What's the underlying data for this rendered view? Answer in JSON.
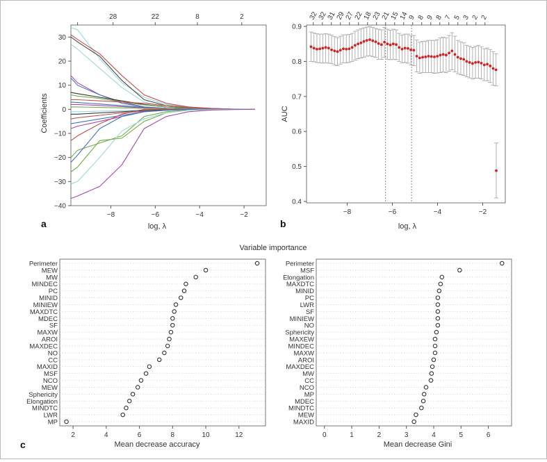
{
  "figure": {
    "panel_labels": [
      "a",
      "b",
      "c"
    ]
  },
  "chart_data": [
    {
      "panel": "a",
      "type": "line",
      "title": "",
      "xlabel": "log, λ",
      "ylabel": "Coefficients",
      "xlim": [
        -9.8,
        -1.0
      ],
      "ylim": [
        -40,
        35
      ],
      "xticks": [
        -8,
        -6,
        -4,
        -2
      ],
      "xtick_labels": [
        "−8",
        "−6",
        "−4",
        "−2"
      ],
      "yticks": [
        -40,
        -30,
        -20,
        -10,
        0,
        10,
        20,
        30
      ],
      "ytick_labels": [
        "−40",
        "−30",
        "−20",
        "−10",
        "0",
        "10",
        "20",
        "30"
      ],
      "top_axis": {
        "ticks": [
          -9.5,
          -7.9,
          -6.0,
          -4.1,
          -2.1
        ],
        "labels": [
          "",
          "28",
          "22",
          "8",
          "2"
        ]
      },
      "x": [
        -9.8,
        -9.5,
        -8.5,
        -7.5,
        -6.5,
        -5.5,
        -4.5,
        -3.5,
        -2.5,
        -1.5
      ],
      "series": [
        {
          "name": "c1",
          "color": "#9fd8d8",
          "values": [
            34,
            33,
            21,
            11,
            5,
            2,
            0.9,
            0.4,
            0.2,
            0
          ]
        },
        {
          "name": "c2",
          "color": "#4a4a4a",
          "values": [
            30,
            28,
            22,
            12,
            4,
            1.5,
            0.7,
            0.3,
            0.1,
            0
          ]
        },
        {
          "name": "c3",
          "color": "#c0504d",
          "values": [
            31,
            29,
            23,
            14,
            6,
            2.5,
            1,
            0.4,
            0.1,
            0
          ]
        },
        {
          "name": "c4",
          "color": "#9fd8d8",
          "values": [
            27,
            25,
            17,
            9,
            3,
            1,
            0.5,
            0.2,
            0.1,
            0
          ]
        },
        {
          "name": "c5",
          "color": "#a64ca6",
          "values": [
            14,
            11,
            6,
            3,
            1,
            0.4,
            0.2,
            0.1,
            0,
            0
          ]
        },
        {
          "name": "c6",
          "color": "#4472c4",
          "values": [
            13,
            10,
            6,
            2.5,
            1,
            0.4,
            0.2,
            0.1,
            0,
            0
          ]
        },
        {
          "name": "c7",
          "color": "#333333",
          "values": [
            7,
            6.5,
            5,
            3.5,
            2,
            1,
            0.5,
            0.2,
            0.1,
            0
          ]
        },
        {
          "name": "c8",
          "color": "#70ad47",
          "values": [
            6,
            5.5,
            4.5,
            3,
            1.8,
            1,
            0.4,
            0.2,
            0.1,
            0
          ]
        },
        {
          "name": "c9",
          "color": "#c0504d",
          "values": [
            4,
            4,
            3.5,
            3,
            2.5,
            1.5,
            0.8,
            0.3,
            0.1,
            0
          ]
        },
        {
          "name": "c10",
          "color": "#4472c4",
          "values": [
            3,
            2.8,
            2.2,
            1.5,
            0.8,
            0.4,
            0.2,
            0.1,
            0,
            0
          ]
        },
        {
          "name": "c11",
          "color": "#a64ca6",
          "values": [
            2,
            2,
            1.6,
            1.1,
            0.6,
            0.3,
            0.1,
            0,
            0,
            0
          ]
        },
        {
          "name": "c12",
          "color": "#70ad47",
          "values": [
            1,
            1,
            0.8,
            0.6,
            0.4,
            0.2,
            0.1,
            0,
            0,
            0
          ]
        },
        {
          "name": "c13",
          "color": "#9fd8d8",
          "values": [
            -1,
            -1,
            -0.8,
            -0.5,
            -0.3,
            -0.1,
            0,
            0,
            0,
            0
          ]
        },
        {
          "name": "c14",
          "color": "#333333",
          "values": [
            -2,
            -2,
            -1.5,
            -1,
            -0.5,
            -0.2,
            -0.1,
            0,
            0,
            0
          ]
        },
        {
          "name": "c15",
          "color": "#c0504d",
          "values": [
            -4,
            -3.5,
            -2.5,
            -1.5,
            -0.8,
            -0.3,
            -0.1,
            0,
            0,
            0
          ]
        },
        {
          "name": "c16",
          "color": "#4472c4",
          "values": [
            -6,
            -5.5,
            -4,
            -2.5,
            -1,
            -0.4,
            -0.1,
            0,
            0,
            0
          ]
        },
        {
          "name": "c17",
          "color": "#a64ca6",
          "values": [
            -8,
            -7,
            -5,
            -3,
            -1,
            -0.4,
            -0.1,
            0,
            0,
            0
          ]
        },
        {
          "name": "c18",
          "color": "#c0504d",
          "values": [
            -13,
            -11,
            -6,
            -2,
            0,
            0,
            0,
            0,
            0,
            0
          ]
        },
        {
          "name": "c19",
          "color": "#70ad47",
          "values": [
            -20,
            -17,
            -14,
            -11,
            -3,
            -1,
            -0.3,
            -0.1,
            0,
            0
          ]
        },
        {
          "name": "c20",
          "color": "#4472c4",
          "values": [
            -22,
            -19,
            -8,
            -3,
            -1,
            -0.3,
            -0.1,
            0,
            0,
            0
          ]
        },
        {
          "name": "c21",
          "color": "#70ad47",
          "values": [
            -26,
            -24,
            -13,
            -12,
            -5,
            -1.5,
            -0.4,
            -0.1,
            0,
            0
          ]
        },
        {
          "name": "c22",
          "color": "#9fd8d8",
          "values": [
            -31,
            -30,
            -20,
            -9,
            -4,
            -1.5,
            -0.4,
            -0.1,
            0,
            0
          ]
        },
        {
          "name": "c23",
          "color": "#a64ca6",
          "values": [
            -37,
            -36,
            -32,
            -23,
            -8,
            -3,
            -1,
            -0.3,
            -0.1,
            0
          ]
        }
      ]
    },
    {
      "panel": "b",
      "type": "scatter",
      "title": "",
      "xlabel": "log, λ",
      "ylabel": "AUC",
      "xlim": [
        -9.8,
        -1.0
      ],
      "ylim": [
        0.4,
        0.9
      ],
      "xticks": [
        -8,
        -6,
        -4,
        -2
      ],
      "xtick_labels": [
        "−8",
        "−6",
        "−4",
        "−2"
      ],
      "yticks": [
        0.4,
        0.5,
        0.6,
        0.7,
        0.8,
        0.9
      ],
      "ytick_labels": [
        "0.4",
        "0.5",
        "0.6",
        "0.7",
        "0.8",
        "0.9"
      ],
      "top_axis": {
        "ticks": [
          -9.5,
          -9.1,
          -8.7,
          -8.3,
          -7.9,
          -7.5,
          -7.1,
          -6.7,
          -6.3,
          -5.9,
          -5.5,
          -5.1,
          -4.7,
          -4.3,
          -3.9,
          -3.5,
          -3.1,
          -2.7,
          -2.3,
          -1.9
        ],
        "labels": [
          "32",
          "32",
          "31",
          "29",
          "27",
          "22",
          "18",
          "23",
          "21",
          "15",
          "14",
          "9",
          "8",
          "9",
          "8",
          "7",
          "5",
          "3",
          "2",
          "2"
        ]
      },
      "vlines": [
        -6.3,
        -5.15
      ],
      "x": [
        -9.6,
        -9.47,
        -9.34,
        -9.21,
        -9.08,
        -8.95,
        -8.82,
        -8.69,
        -8.56,
        -8.43,
        -8.3,
        -8.17,
        -8.04,
        -7.91,
        -7.78,
        -7.65,
        -7.52,
        -7.39,
        -7.26,
        -7.13,
        -7.0,
        -6.87,
        -6.74,
        -6.61,
        -6.48,
        -6.35,
        -6.22,
        -6.09,
        -5.96,
        -5.83,
        -5.7,
        -5.57,
        -5.44,
        -5.31,
        -5.18,
        -5.05,
        -4.92,
        -4.79,
        -4.66,
        -4.53,
        -4.4,
        -4.27,
        -4.14,
        -4.01,
        -3.88,
        -3.75,
        -3.62,
        -3.49,
        -3.36,
        -3.23,
        -3.1,
        -2.97,
        -2.84,
        -2.71,
        -2.58,
        -2.45,
        -2.32,
        -2.19,
        -2.06,
        -1.93,
        -1.8,
        -1.67,
        -1.54,
        -1.41
      ],
      "values": [
        0.842,
        0.838,
        0.835,
        0.836,
        0.838,
        0.84,
        0.838,
        0.833,
        0.83,
        0.828,
        0.832,
        0.836,
        0.835,
        0.836,
        0.84,
        0.846,
        0.85,
        0.853,
        0.857,
        0.86,
        0.862,
        0.859,
        0.856,
        0.851,
        0.848,
        0.855,
        0.85,
        0.847,
        0.85,
        0.848,
        0.84,
        0.835,
        0.838,
        0.837,
        0.833,
        0.832,
        0.815,
        0.81,
        0.812,
        0.813,
        0.815,
        0.814,
        0.813,
        0.815,
        0.818,
        0.82,
        0.818,
        0.824,
        0.83,
        0.82,
        0.812,
        0.808,
        0.806,
        0.8,
        0.797,
        0.794,
        0.797,
        0.798,
        0.795,
        0.79,
        0.792,
        0.787,
        0.78,
        0.776
      ],
      "ci_low": [
        0.8,
        0.799,
        0.797,
        0.796,
        0.795,
        0.796,
        0.795,
        0.794,
        0.79,
        0.788,
        0.792,
        0.796,
        0.796,
        0.797,
        0.8,
        0.804,
        0.808,
        0.81,
        0.812,
        0.815,
        0.816,
        0.814,
        0.812,
        0.806,
        0.806,
        0.812,
        0.806,
        0.805,
        0.806,
        0.805,
        0.8,
        0.796,
        0.797,
        0.795,
        0.79,
        0.788,
        0.77,
        0.766,
        0.768,
        0.768,
        0.768,
        0.768,
        0.766,
        0.767,
        0.768,
        0.77,
        0.768,
        0.772,
        0.776,
        0.77,
        0.765,
        0.762,
        0.76,
        0.756,
        0.753,
        0.75,
        0.752,
        0.752,
        0.75,
        0.745,
        0.745,
        0.74,
        0.732,
        0.73
      ],
      "ci_high": [
        0.884,
        0.881,
        0.879,
        0.878,
        0.878,
        0.879,
        0.878,
        0.875,
        0.871,
        0.868,
        0.872,
        0.876,
        0.876,
        0.877,
        0.88,
        0.886,
        0.89,
        0.893,
        0.896,
        0.898,
        0.9,
        0.897,
        0.894,
        0.892,
        0.89,
        0.897,
        0.892,
        0.889,
        0.892,
        0.89,
        0.88,
        0.875,
        0.878,
        0.878,
        0.874,
        0.874,
        0.861,
        0.855,
        0.857,
        0.858,
        0.86,
        0.86,
        0.86,
        0.862,
        0.867,
        0.869,
        0.867,
        0.874,
        0.882,
        0.872,
        0.86,
        0.856,
        0.853,
        0.846,
        0.843,
        0.84,
        0.843,
        0.846,
        0.842,
        0.836,
        0.838,
        0.834,
        0.828,
        0.822
      ],
      "outlier": {
        "x": -1.4,
        "value": 0.488,
        "ci_low": 0.41,
        "ci_high": 0.567
      }
    },
    {
      "panel": "c",
      "type": "scatter",
      "title": "Variable importance",
      "xlabel": "Mean decrease accuracy",
      "ylabel": "",
      "xlim": [
        1.2,
        13.6
      ],
      "xticks": [
        2,
        4,
        6,
        8,
        10,
        12
      ],
      "xtick_labels": [
        "2",
        "4",
        "6",
        "8",
        "10",
        "12"
      ],
      "categories": [
        "Perimeter",
        "MEW",
        "MW",
        "MINDEC",
        "PC",
        "MINID",
        "MINIEW",
        "MAXDTC",
        "MDEC",
        "SF",
        "MAXW",
        "AROI",
        "MAXDEC",
        "NO",
        "CC",
        "MAXID",
        "MSF",
        "NCO",
        "MEW",
        "Sphericity",
        "Elongation",
        "MINDTC",
        "LWR",
        "MP"
      ],
      "values": [
        13.1,
        10.0,
        9.4,
        8.8,
        8.7,
        8.5,
        8.2,
        8.1,
        8.0,
        8.0,
        7.9,
        7.8,
        7.7,
        7.5,
        7.2,
        6.6,
        6.4,
        6.1,
        5.9,
        5.6,
        5.4,
        5.2,
        5.0,
        1.6
      ]
    },
    {
      "panel": "c",
      "type": "scatter",
      "title": "",
      "xlabel": "Mean decrease Gini",
      "ylabel": "",
      "xlim": [
        -0.3,
        6.85
      ],
      "xticks": [
        0,
        1,
        2,
        3,
        4,
        5,
        6
      ],
      "xtick_labels": [
        "0",
        "1",
        "2",
        "3",
        "4",
        "5",
        "6"
      ],
      "categories": [
        "Perimeter",
        "MSF",
        "Elongation",
        "MAXDTC",
        "MINID",
        "PC",
        "LWR",
        "SF",
        "MINIEW",
        "NO",
        "Sphericity",
        "MAXEW",
        "MINDEC",
        "MAXW",
        "AROI",
        "MAXDEC",
        "MW",
        "CC",
        "NCO",
        "MP",
        "MDEC",
        "MINDTC",
        "MEW",
        "MAXID"
      ],
      "values": [
        6.5,
        4.95,
        4.3,
        4.25,
        4.2,
        4.15,
        4.15,
        4.15,
        4.15,
        4.15,
        4.1,
        4.05,
        4.05,
        4.05,
        4.0,
        3.95,
        3.92,
        3.9,
        3.72,
        3.65,
        3.62,
        3.55,
        3.35,
        3.28
      ]
    }
  ]
}
